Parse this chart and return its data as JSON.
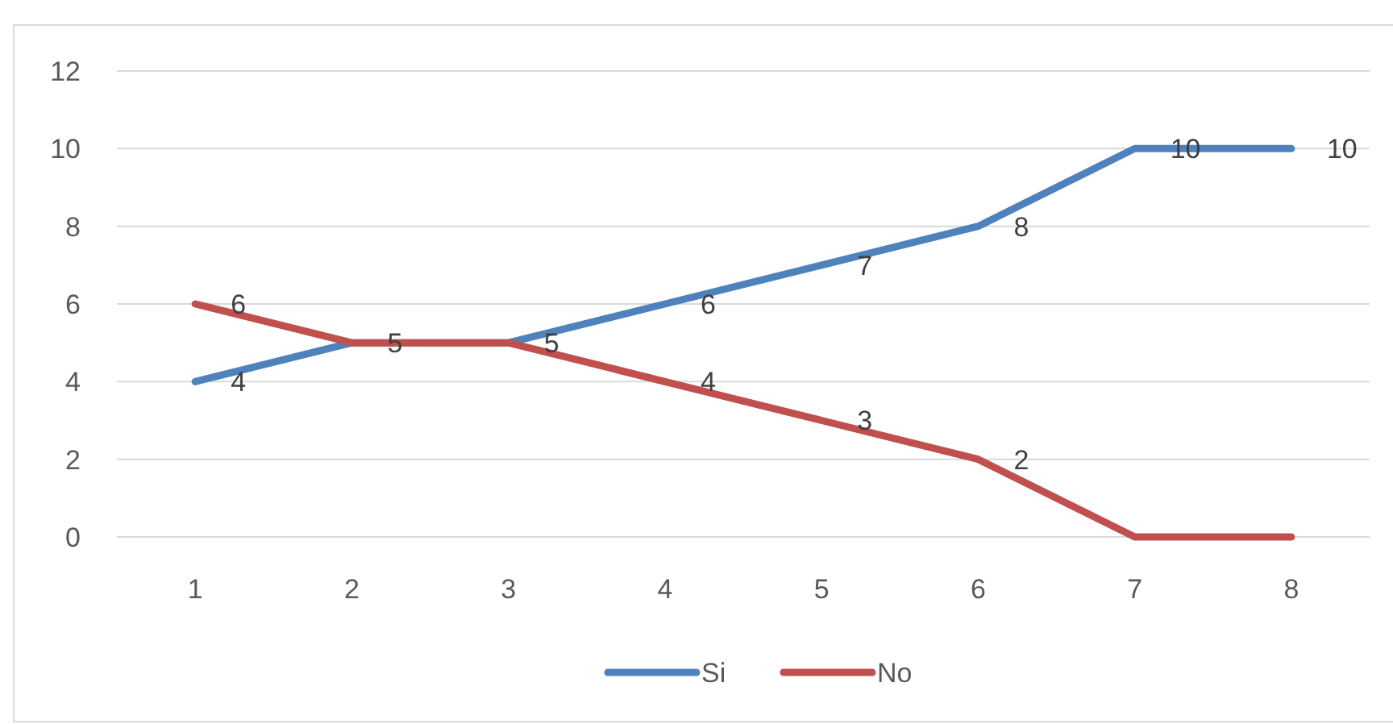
{
  "chart_data": {
    "type": "line",
    "categories": [
      "1",
      "2",
      "3",
      "4",
      "5",
      "6",
      "7",
      "8"
    ],
    "series": [
      {
        "name": "Si",
        "color": "#4f81bd",
        "values": [
          4,
          5,
          5,
          6,
          7,
          8,
          10,
          10
        ],
        "value_labels": [
          "4",
          "5",
          "5",
          "6",
          "7",
          "8",
          "10",
          "10"
        ]
      },
      {
        "name": "No",
        "color": "#c0504d",
        "values": [
          6,
          5,
          5,
          4,
          3,
          2,
          0,
          0
        ],
        "value_labels": [
          "6",
          null,
          null,
          "4",
          "3",
          "2",
          null,
          null
        ]
      }
    ],
    "ylim": [
      0,
      12
    ],
    "yticks": [
      0,
      2,
      4,
      6,
      8,
      10,
      12
    ],
    "grid": true,
    "legend": "bottom"
  }
}
